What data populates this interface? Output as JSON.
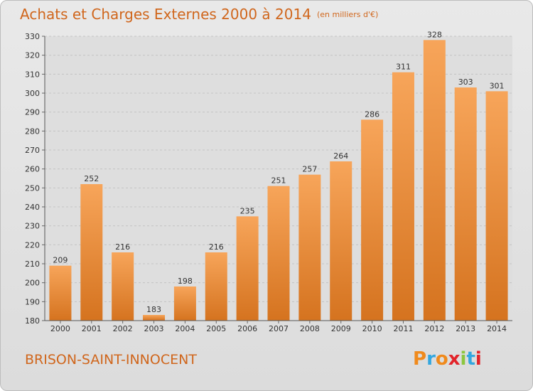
{
  "header": {
    "title": "Achats et Charges Externes 2000 à 2014",
    "subtitle": "(en milliers d'€)"
  },
  "footer": {
    "town": "BRISON-SAINT-INNOCENT",
    "logo_text": "Proxiti",
    "logo_colors": [
      "#f08a1c",
      "#33a7df",
      "#f08a1c",
      "#e2242a",
      "#8cc63f",
      "#33a7df",
      "#e2242a"
    ]
  },
  "colors": {
    "accent": "#d0661c",
    "bar_light": "#f7a55a",
    "bar_dark": "#d5731f"
  },
  "chart_data": {
    "type": "bar",
    "categories": [
      "2000",
      "2001",
      "2002",
      "2003",
      "2004",
      "2005",
      "2006",
      "2007",
      "2008",
      "2009",
      "2010",
      "2011",
      "2012",
      "2013",
      "2014"
    ],
    "values": [
      209,
      252,
      216,
      183,
      198,
      216,
      235,
      251,
      257,
      264,
      286,
      311,
      328,
      303,
      301
    ],
    "ylim": [
      180,
      330
    ],
    "yticks": [
      180,
      190,
      200,
      210,
      220,
      230,
      240,
      250,
      260,
      270,
      280,
      290,
      300,
      310,
      320,
      330
    ],
    "grid": true,
    "xlabel": "",
    "ylabel": ""
  }
}
